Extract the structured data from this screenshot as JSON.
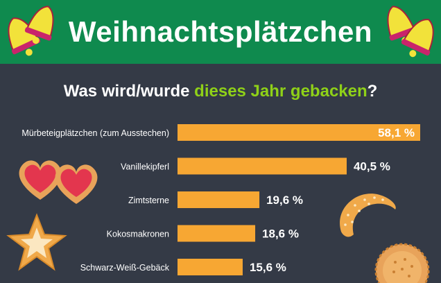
{
  "header": {
    "title": "Weihnachtsplätzchen"
  },
  "subtitle": {
    "part1": "Was wird/wurde ",
    "highlight": "dieses Jahr gebacken",
    "part2": "?"
  },
  "colors": {
    "header_bg": "#0f8a4e",
    "background": "#343a46",
    "bar": "#f7a733",
    "highlight": "#8fd118"
  },
  "decorations": [
    "bell-icon",
    "heart-cookie-icon",
    "star-cookie-icon",
    "crescent-cookie-icon",
    "round-cookie-icon"
  ],
  "chart_data": {
    "type": "bar",
    "orientation": "horizontal",
    "categories": [
      "Mürbeteigplätzchen (zum Ausstechen)",
      "Vanillekipferl",
      "Zimtsterne",
      "Kokosmakronen",
      "Schwarz-Weiß-Gebäck"
    ],
    "values": [
      58.1,
      40.5,
      19.6,
      18.6,
      15.6
    ],
    "labels": [
      "58,1 %",
      "40,5 %",
      "19,6 %",
      "18,6 %",
      "15,6 %"
    ],
    "unit": "%",
    "xlim": [
      0,
      58.1
    ]
  }
}
